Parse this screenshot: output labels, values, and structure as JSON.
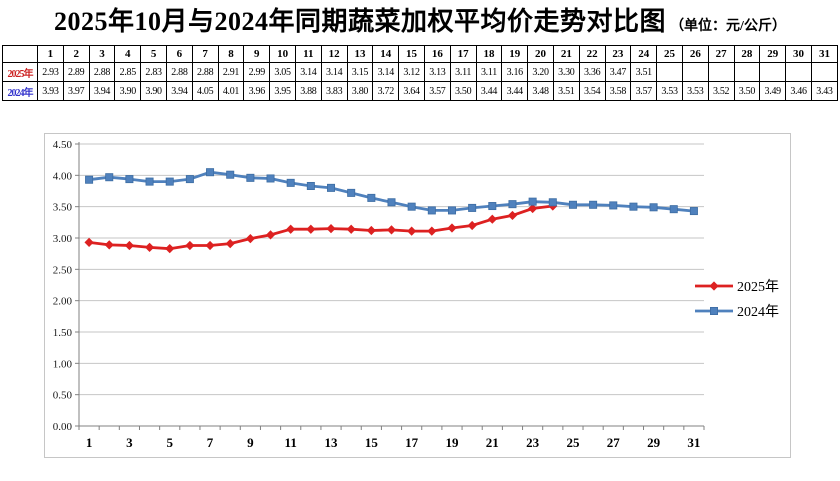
{
  "title": {
    "main": "2025年10月与2024年同期蔬菜加权平均价走势对比图",
    "unit": "（单位：元/公斤）"
  },
  "table": {
    "corner": "",
    "days": [
      "1",
      "2",
      "3",
      "4",
      "5",
      "6",
      "7",
      "8",
      "9",
      "10",
      "11",
      "12",
      "13",
      "14",
      "15",
      "16",
      "17",
      "18",
      "19",
      "20",
      "21",
      "22",
      "23",
      "24",
      "25",
      "26",
      "27",
      "28",
      "29",
      "30",
      "31"
    ],
    "rows": [
      {
        "label": "2025年",
        "label_color": "#cc2222",
        "values": [
          "2.93",
          "2.89",
          "2.88",
          "2.85",
          "2.83",
          "2.88",
          "2.88",
          "2.91",
          "2.99",
          "3.05",
          "3.14",
          "3.14",
          "3.15",
          "3.14",
          "3.12",
          "3.13",
          "3.11",
          "3.11",
          "3.16",
          "3.20",
          "3.30",
          "3.36",
          "3.47",
          "3.51",
          "",
          "",
          "",
          "",
          "",
          "",
          ""
        ]
      },
      {
        "label": "2024年",
        "label_color": "#3333cc",
        "values": [
          "3.93",
          "3.97",
          "3.94",
          "3.90",
          "3.90",
          "3.94",
          "4.05",
          "4.01",
          "3.96",
          "3.95",
          "3.88",
          "3.83",
          "3.80",
          "3.72",
          "3.64",
          "3.57",
          "3.50",
          "3.44",
          "3.44",
          "3.48",
          "3.51",
          "3.54",
          "3.58",
          "3.57",
          "3.53",
          "3.53",
          "3.52",
          "3.50",
          "3.49",
          "3.46",
          "3.43"
        ]
      }
    ]
  },
  "chart_data": {
    "type": "line",
    "title": "2025年10月与2024年同期蔬菜加权平均价走势对比图",
    "unit_label": "元/公斤",
    "x": [
      1,
      2,
      3,
      4,
      5,
      6,
      7,
      8,
      9,
      10,
      11,
      12,
      13,
      14,
      15,
      16,
      17,
      18,
      19,
      20,
      21,
      22,
      23,
      24,
      25,
      26,
      27,
      28,
      29,
      30,
      31
    ],
    "series": [
      {
        "name": "2025年",
        "color": "#dd2121",
        "marker": "diamond",
        "values": [
          2.93,
          2.89,
          2.88,
          2.85,
          2.83,
          2.88,
          2.88,
          2.91,
          2.99,
          3.05,
          3.14,
          3.14,
          3.15,
          3.14,
          3.12,
          3.13,
          3.11,
          3.11,
          3.16,
          3.2,
          3.3,
          3.36,
          3.47,
          3.51,
          null,
          null,
          null,
          null,
          null,
          null,
          null
        ]
      },
      {
        "name": "2024年",
        "color": "#4f81bd",
        "marker": "square",
        "values": [
          3.93,
          3.97,
          3.94,
          3.9,
          3.9,
          3.94,
          4.05,
          4.01,
          3.96,
          3.95,
          3.88,
          3.83,
          3.8,
          3.72,
          3.64,
          3.57,
          3.5,
          3.44,
          3.44,
          3.48,
          3.51,
          3.54,
          3.58,
          3.57,
          3.53,
          3.53,
          3.52,
          3.5,
          3.49,
          3.46,
          3.43
        ]
      }
    ],
    "ylim": [
      0,
      4.5
    ],
    "ytick_step": 0.5,
    "yticklabels": [
      "0.00",
      "0.50",
      "1.00",
      "1.50",
      "2.00",
      "2.50",
      "3.00",
      "3.50",
      "4.00",
      "4.50"
    ],
    "xticklabels": [
      1,
      3,
      5,
      7,
      9,
      11,
      13,
      15,
      17,
      19,
      21,
      23,
      25,
      27,
      29,
      31
    ],
    "legend_position": "right",
    "grid": "horizontal"
  },
  "colors": {
    "grid": "#c6c6c6",
    "axis": "#808080",
    "frame": "#c6c6c6",
    "table_border": "#000000",
    "text": "#000000"
  }
}
